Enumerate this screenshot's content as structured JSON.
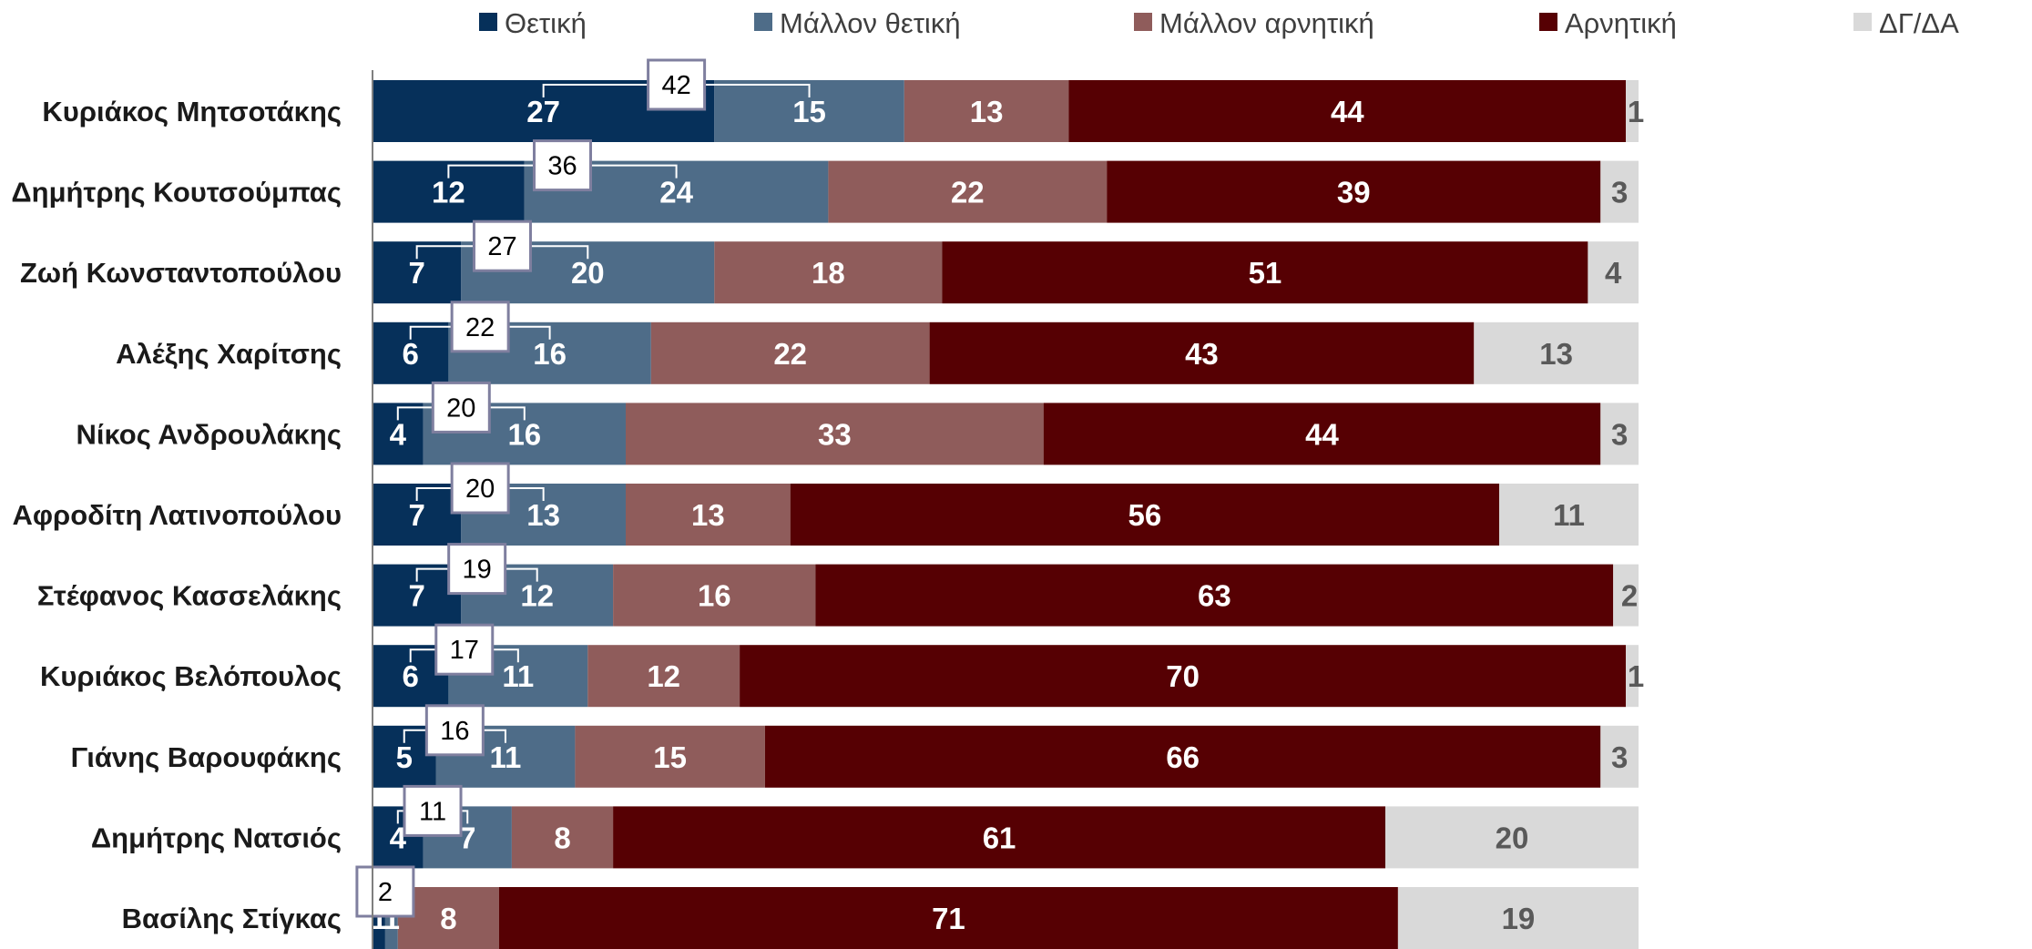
{
  "chart_data": {
    "type": "bar",
    "orientation": "horizontal",
    "stacked": true,
    "xlim": [
      0,
      100
    ],
    "legend_position": "top",
    "grid": false,
    "categories": [
      "Κυριάκος Μητσοτάκης",
      "Δημήτρης Κουτσούμπας",
      "Ζωή Κωνσταντοπούλου",
      "Αλέξης Χαρίτσης",
      "Νίκος Ανδρουλάκης",
      "Αφροδίτη Λατινοπούλου",
      "Στέφανος Κασσελάκης",
      "Κυριάκος Βελόπουλος",
      "Γιάνης Βαρουφάκης",
      "Δημήτρης Νατσιός",
      "Βασίλης Στίγκας"
    ],
    "series": [
      {
        "name": "Θετική",
        "color": "#06305a",
        "label_color": "#ffffff",
        "values": [
          27,
          12,
          7,
          6,
          4,
          7,
          7,
          6,
          5,
          4,
          1
        ]
      },
      {
        "name": "Μάλλον θετική",
        "color": "#4e6c88",
        "label_color": "#ffffff",
        "values": [
          15,
          24,
          20,
          16,
          16,
          13,
          12,
          11,
          11,
          7,
          1
        ]
      },
      {
        "name": "Μάλλον αρνητική",
        "color": "#8f5c5b",
        "label_color": "#ffffff",
        "values": [
          13,
          22,
          18,
          22,
          33,
          13,
          16,
          12,
          15,
          8,
          8
        ]
      },
      {
        "name": "Αρνητική",
        "color": "#560003",
        "label_color": "#ffffff",
        "values": [
          44,
          39,
          51,
          43,
          44,
          56,
          63,
          70,
          66,
          61,
          71
        ]
      },
      {
        "name": "ΔΓ/ΔΑ",
        "color": "#d9d9d9",
        "label_color": "#595959",
        "values": [
          1,
          3,
          4,
          13,
          3,
          11,
          2,
          1,
          3,
          20,
          19
        ]
      }
    ],
    "positive_totals": [
      42,
      36,
      27,
      22,
      20,
      20,
      19,
      17,
      16,
      11,
      2
    ]
  }
}
